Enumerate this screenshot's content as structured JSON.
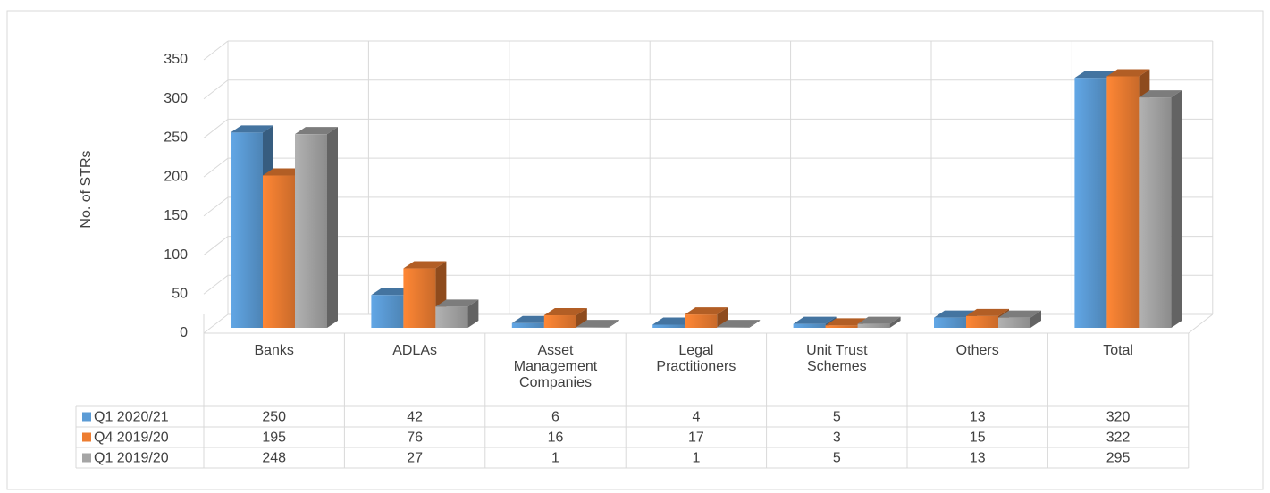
{
  "chart_data": {
    "type": "bar3d",
    "ylabel": "No. of STRs",
    "categories": [
      "Banks",
      "ADLAs",
      "Asset Management Companies",
      "Legal Practitioners",
      "Unit Trust Schemes",
      "Others",
      "Total"
    ],
    "series": [
      {
        "name": "Q1 2020/21",
        "color": "#5b9bd5",
        "values": [
          250,
          42,
          6,
          4,
          5,
          13,
          320
        ]
      },
      {
        "name": "Q4 2019/20",
        "color": "#ed7d31",
        "values": [
          195,
          76,
          16,
          17,
          3,
          15,
          322
        ]
      },
      {
        "name": "Q1 2019/20",
        "color": "#a5a5a5",
        "values": [
          248,
          27,
          1,
          1,
          5,
          13,
          295
        ]
      }
    ],
    "ylim": [
      0,
      350
    ],
    "yticks": [
      0,
      50,
      100,
      150,
      200,
      250,
      300,
      350
    ],
    "grid": true,
    "data_table": true
  }
}
